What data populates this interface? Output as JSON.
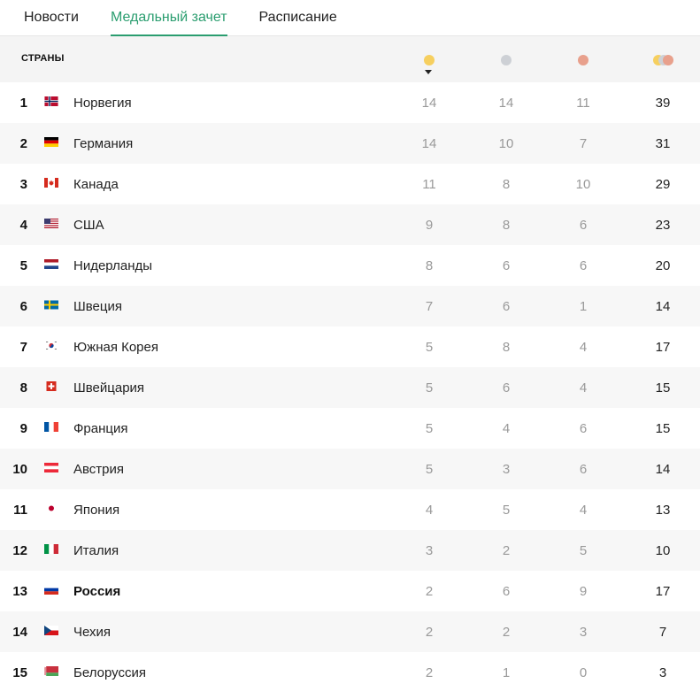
{
  "tabs": [
    {
      "label": "Новости",
      "active": false
    },
    {
      "label": "Медальный зачет",
      "active": true
    },
    {
      "label": "Расписание",
      "active": false
    }
  ],
  "table": {
    "header": {
      "countries_label": "СТРАНЫ",
      "sort_by": "gold"
    },
    "medal_colors": {
      "gold": "#f6cf5f",
      "silver": "#cdd0d5",
      "bronze": "#e8a08c"
    },
    "accent_color": "#2a9d6f",
    "rows": [
      {
        "rank": "1",
        "country": "Норвегия",
        "flag": "norway-flag",
        "gold": "14",
        "silver": "14",
        "bronze": "11",
        "total": "39"
      },
      {
        "rank": "2",
        "country": "Германия",
        "flag": "germany-flag",
        "gold": "14",
        "silver": "10",
        "bronze": "7",
        "total": "31"
      },
      {
        "rank": "3",
        "country": "Канада",
        "flag": "canada-flag",
        "gold": "11",
        "silver": "8",
        "bronze": "10",
        "total": "29"
      },
      {
        "rank": "4",
        "country": "США",
        "flag": "usa-flag",
        "gold": "9",
        "silver": "8",
        "bronze": "6",
        "total": "23"
      },
      {
        "rank": "5",
        "country": "Нидерланды",
        "flag": "netherlands-flag",
        "gold": "8",
        "silver": "6",
        "bronze": "6",
        "total": "20"
      },
      {
        "rank": "6",
        "country": "Швеция",
        "flag": "sweden-flag",
        "gold": "7",
        "silver": "6",
        "bronze": "1",
        "total": "14"
      },
      {
        "rank": "7",
        "country": "Южная Корея",
        "flag": "south-korea-flag",
        "gold": "5",
        "silver": "8",
        "bronze": "4",
        "total": "17"
      },
      {
        "rank": "8",
        "country": "Швейцария",
        "flag": "switzerland-flag",
        "gold": "5",
        "silver": "6",
        "bronze": "4",
        "total": "15"
      },
      {
        "rank": "9",
        "country": "Франция",
        "flag": "france-flag",
        "gold": "5",
        "silver": "4",
        "bronze": "6",
        "total": "15"
      },
      {
        "rank": "10",
        "country": "Австрия",
        "flag": "austria-flag",
        "gold": "5",
        "silver": "3",
        "bronze": "6",
        "total": "14"
      },
      {
        "rank": "11",
        "country": "Япония",
        "flag": "japan-flag",
        "gold": "4",
        "silver": "5",
        "bronze": "4",
        "total": "13"
      },
      {
        "rank": "12",
        "country": "Италия",
        "flag": "italy-flag",
        "gold": "3",
        "silver": "2",
        "bronze": "5",
        "total": "10"
      },
      {
        "rank": "13",
        "country": "Россия",
        "flag": "russia-flag",
        "gold": "2",
        "silver": "6",
        "bronze": "9",
        "total": "17",
        "highlighted": true
      },
      {
        "rank": "14",
        "country": "Чехия",
        "flag": "czech-flag",
        "gold": "2",
        "silver": "2",
        "bronze": "3",
        "total": "7"
      },
      {
        "rank": "15",
        "country": "Белоруссия",
        "flag": "belarus-flag",
        "gold": "2",
        "silver": "1",
        "bronze": "0",
        "total": "3"
      }
    ]
  }
}
